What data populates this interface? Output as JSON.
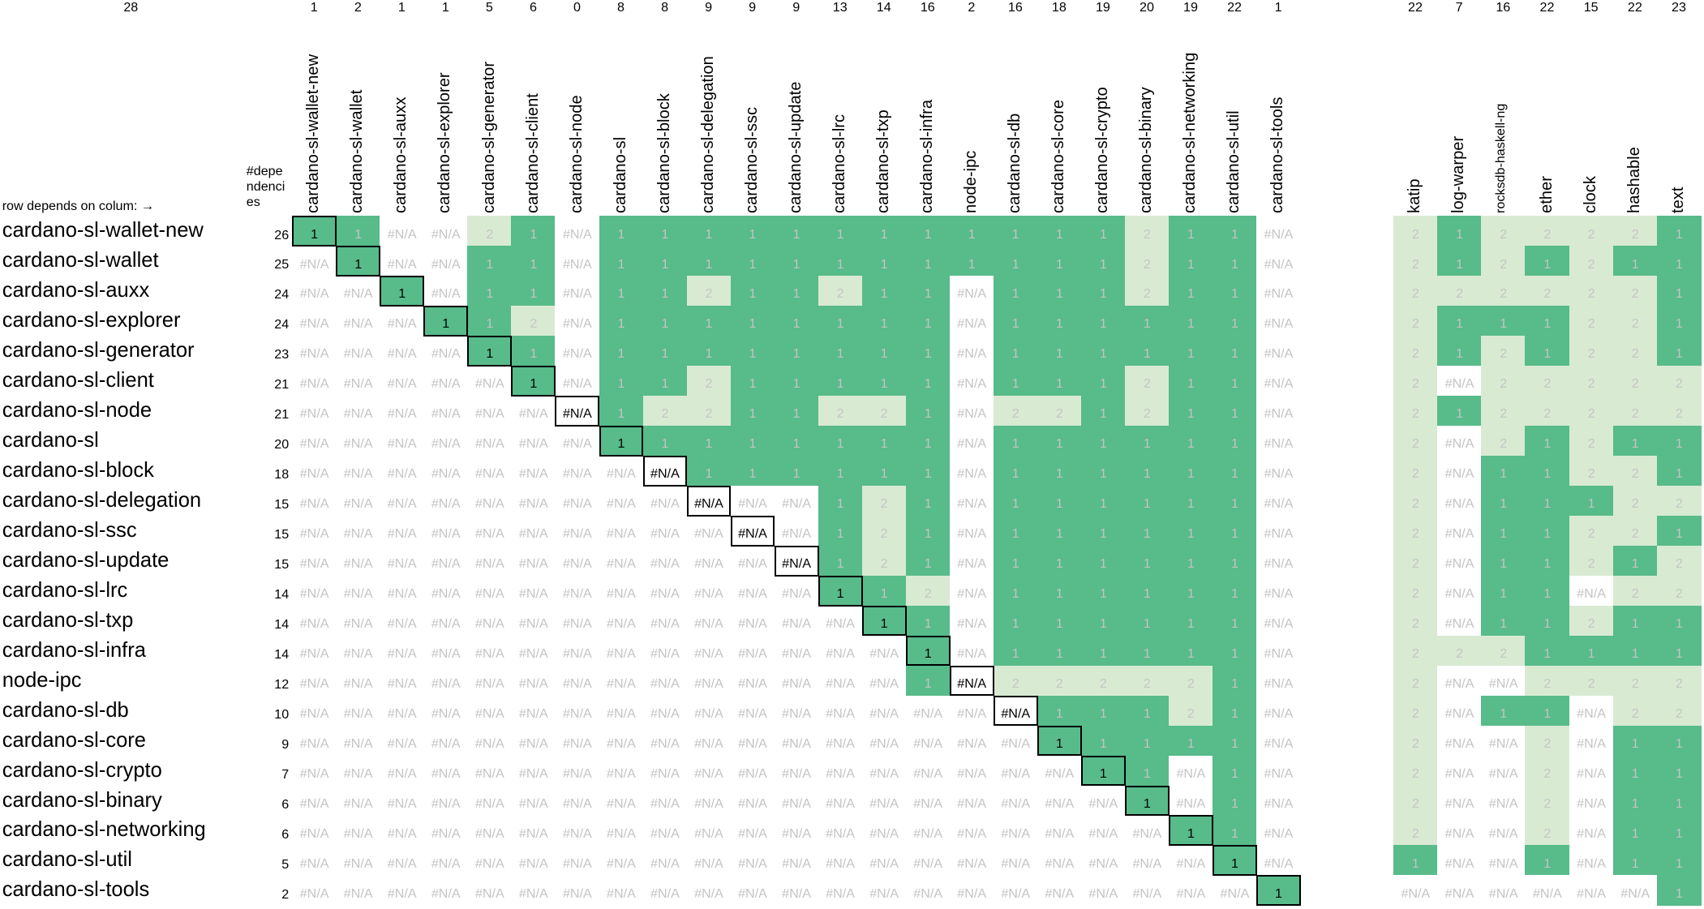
{
  "table": {
    "corner_count": 28,
    "corner_note": "row depends on colum: →",
    "deps_header": "#dependencies",
    "column_counts": [
      1,
      2,
      1,
      1,
      5,
      6,
      0,
      8,
      8,
      9,
      9,
      9,
      13,
      14,
      16,
      2,
      16,
      18,
      19,
      20,
      19,
      22,
      1
    ],
    "external_counts": [
      22,
      7,
      16,
      22,
      15,
      22,
      23
    ],
    "columns": [
      "cardano-sl-wallet-new",
      "cardano-sl-wallet",
      "cardano-sl-auxx",
      "cardano-sl-explorer",
      "cardano-sl-generator",
      "cardano-sl-client",
      "cardano-sl-node",
      "cardano-sl",
      "cardano-sl-block",
      "cardano-sl-delegation",
      "cardano-sl-ssc",
      "cardano-sl-update",
      "cardano-sl-lrc",
      "cardano-sl-txp",
      "cardano-sl-infra",
      "node-ipc",
      "cardano-sl-db",
      "cardano-sl-core",
      "cardano-sl-crypto",
      "cardano-sl-binary",
      "cardano-sl-networking",
      "cardano-sl-util",
      "cardano-sl-tools"
    ],
    "external_columns": [
      "katip",
      "log-warper",
      "rocksdb-haskell-ng",
      "ether",
      "clock",
      "hashable",
      "text"
    ],
    "rows": [
      {
        "label": "cardano-sl-wallet-new",
        "deps": 26,
        "cells": [
          1,
          1,
          "#N/A",
          "#N/A",
          2,
          1,
          "#N/A",
          1,
          1,
          1,
          1,
          1,
          1,
          1,
          1,
          1,
          1,
          1,
          1,
          2,
          1,
          1,
          "#N/A"
        ],
        "external": [
          2,
          1,
          2,
          2,
          2,
          2,
          1
        ]
      },
      {
        "label": "cardano-sl-wallet",
        "deps": 25,
        "cells": [
          "#N/A",
          1,
          "#N/A",
          "#N/A",
          1,
          1,
          "#N/A",
          1,
          1,
          1,
          1,
          1,
          1,
          1,
          1,
          1,
          1,
          1,
          1,
          2,
          1,
          1,
          "#N/A"
        ],
        "external": [
          2,
          1,
          2,
          1,
          2,
          1,
          1
        ]
      },
      {
        "label": "cardano-sl-auxx",
        "deps": 24,
        "cells": [
          "#N/A",
          "#N/A",
          1,
          "#N/A",
          1,
          1,
          "#N/A",
          1,
          1,
          2,
          1,
          1,
          2,
          1,
          1,
          "#N/A",
          1,
          1,
          1,
          2,
          1,
          1,
          "#N/A"
        ],
        "external": [
          2,
          2,
          2,
          2,
          2,
          2,
          1
        ]
      },
      {
        "label": "cardano-sl-explorer",
        "deps": 24,
        "cells": [
          "#N/A",
          "#N/A",
          "#N/A",
          1,
          1,
          2,
          "#N/A",
          1,
          1,
          1,
          1,
          1,
          1,
          1,
          1,
          "#N/A",
          1,
          1,
          1,
          1,
          1,
          1,
          "#N/A"
        ],
        "external": [
          2,
          1,
          1,
          1,
          2,
          2,
          1
        ]
      },
      {
        "label": "cardano-sl-generator",
        "deps": 23,
        "cells": [
          "#N/A",
          "#N/A",
          "#N/A",
          "#N/A",
          1,
          1,
          "#N/A",
          1,
          1,
          1,
          1,
          1,
          1,
          1,
          1,
          "#N/A",
          1,
          1,
          1,
          1,
          1,
          1,
          "#N/A"
        ],
        "external": [
          2,
          1,
          2,
          1,
          2,
          2,
          1
        ]
      },
      {
        "label": "cardano-sl-client",
        "deps": 21,
        "cells": [
          "#N/A",
          "#N/A",
          "#N/A",
          "#N/A",
          "#N/A",
          1,
          "#N/A",
          1,
          1,
          2,
          1,
          1,
          1,
          1,
          1,
          "#N/A",
          1,
          1,
          1,
          2,
          1,
          1,
          "#N/A"
        ],
        "external": [
          2,
          "#N/A",
          2,
          2,
          2,
          2,
          2
        ]
      },
      {
        "label": "cardano-sl-node",
        "deps": 21,
        "cells": [
          "#N/A",
          "#N/A",
          "#N/A",
          "#N/A",
          "#N/A",
          "#N/A",
          "#N/A",
          1,
          2,
          2,
          1,
          1,
          2,
          2,
          1,
          "#N/A",
          2,
          2,
          1,
          2,
          1,
          1,
          "#N/A"
        ],
        "external": [
          2,
          1,
          2,
          2,
          2,
          2,
          2
        ]
      },
      {
        "label": "cardano-sl",
        "deps": 20,
        "cells": [
          "#N/A",
          "#N/A",
          "#N/A",
          "#N/A",
          "#N/A",
          "#N/A",
          "#N/A",
          1,
          1,
          1,
          1,
          1,
          1,
          1,
          1,
          "#N/A",
          1,
          1,
          1,
          1,
          1,
          1,
          "#N/A"
        ],
        "external": [
          2,
          "#N/A",
          2,
          1,
          2,
          1,
          1
        ]
      },
      {
        "label": "cardano-sl-block",
        "deps": 18,
        "cells": [
          "#N/A",
          "#N/A",
          "#N/A",
          "#N/A",
          "#N/A",
          "#N/A",
          "#N/A",
          "#N/A",
          "#N/A",
          1,
          1,
          1,
          1,
          1,
          1,
          "#N/A",
          1,
          1,
          1,
          1,
          1,
          1,
          "#N/A"
        ],
        "external": [
          2,
          "#N/A",
          1,
          1,
          2,
          2,
          1
        ]
      },
      {
        "label": "cardano-sl-delegation",
        "deps": 15,
        "cells": [
          "#N/A",
          "#N/A",
          "#N/A",
          "#N/A",
          "#N/A",
          "#N/A",
          "#N/A",
          "#N/A",
          "#N/A",
          "#N/A",
          "#N/A",
          "#N/A",
          1,
          2,
          1,
          "#N/A",
          1,
          1,
          1,
          1,
          1,
          1,
          "#N/A"
        ],
        "external": [
          2,
          "#N/A",
          1,
          1,
          1,
          2,
          2
        ]
      },
      {
        "label": "cardano-sl-ssc",
        "deps": 15,
        "cells": [
          "#N/A",
          "#N/A",
          "#N/A",
          "#N/A",
          "#N/A",
          "#N/A",
          "#N/A",
          "#N/A",
          "#N/A",
          "#N/A",
          "#N/A",
          "#N/A",
          1,
          2,
          1,
          "#N/A",
          1,
          1,
          1,
          1,
          1,
          1,
          "#N/A"
        ],
        "external": [
          2,
          "#N/A",
          1,
          1,
          2,
          2,
          1
        ]
      },
      {
        "label": "cardano-sl-update",
        "deps": 15,
        "cells": [
          "#N/A",
          "#N/A",
          "#N/A",
          "#N/A",
          "#N/A",
          "#N/A",
          "#N/A",
          "#N/A",
          "#N/A",
          "#N/A",
          "#N/A",
          "#N/A",
          1,
          2,
          1,
          "#N/A",
          1,
          1,
          1,
          1,
          1,
          1,
          "#N/A"
        ],
        "external": [
          2,
          "#N/A",
          1,
          1,
          2,
          1,
          2
        ]
      },
      {
        "label": "cardano-sl-lrc",
        "deps": 14,
        "cells": [
          "#N/A",
          "#N/A",
          "#N/A",
          "#N/A",
          "#N/A",
          "#N/A",
          "#N/A",
          "#N/A",
          "#N/A",
          "#N/A",
          "#N/A",
          "#N/A",
          1,
          1,
          2,
          "#N/A",
          1,
          1,
          1,
          1,
          1,
          1,
          "#N/A"
        ],
        "external": [
          2,
          "#N/A",
          1,
          1,
          "#N/A",
          2,
          2
        ]
      },
      {
        "label": "cardano-sl-txp",
        "deps": 14,
        "cells": [
          "#N/A",
          "#N/A",
          "#N/A",
          "#N/A",
          "#N/A",
          "#N/A",
          "#N/A",
          "#N/A",
          "#N/A",
          "#N/A",
          "#N/A",
          "#N/A",
          "#N/A",
          1,
          1,
          "#N/A",
          1,
          1,
          1,
          1,
          1,
          1,
          "#N/A"
        ],
        "external": [
          2,
          "#N/A",
          1,
          1,
          2,
          1,
          1
        ]
      },
      {
        "label": "cardano-sl-infra",
        "deps": 14,
        "cells": [
          "#N/A",
          "#N/A",
          "#N/A",
          "#N/A",
          "#N/A",
          "#N/A",
          "#N/A",
          "#N/A",
          "#N/A",
          "#N/A",
          "#N/A",
          "#N/A",
          "#N/A",
          "#N/A",
          1,
          "#N/A",
          1,
          1,
          1,
          1,
          1,
          1,
          "#N/A"
        ],
        "external": [
          2,
          2,
          2,
          1,
          1,
          1,
          1
        ]
      },
      {
        "label": "node-ipc",
        "deps": 12,
        "cells": [
          "#N/A",
          "#N/A",
          "#N/A",
          "#N/A",
          "#N/A",
          "#N/A",
          "#N/A",
          "#N/A",
          "#N/A",
          "#N/A",
          "#N/A",
          "#N/A",
          "#N/A",
          "#N/A",
          1,
          "#N/A",
          2,
          2,
          2,
          2,
          2,
          1,
          "#N/A"
        ],
        "external": [
          2,
          "#N/A",
          "#N/A",
          2,
          2,
          2,
          2
        ]
      },
      {
        "label": "cardano-sl-db",
        "deps": 10,
        "cells": [
          "#N/A",
          "#N/A",
          "#N/A",
          "#N/A",
          "#N/A",
          "#N/A",
          "#N/A",
          "#N/A",
          "#N/A",
          "#N/A",
          "#N/A",
          "#N/A",
          "#N/A",
          "#N/A",
          "#N/A",
          "#N/A",
          "#N/A",
          1,
          1,
          1,
          2,
          1,
          "#N/A"
        ],
        "external": [
          2,
          "#N/A",
          1,
          1,
          "#N/A",
          2,
          2
        ]
      },
      {
        "label": "cardano-sl-core",
        "deps": 9,
        "cells": [
          "#N/A",
          "#N/A",
          "#N/A",
          "#N/A",
          "#N/A",
          "#N/A",
          "#N/A",
          "#N/A",
          "#N/A",
          "#N/A",
          "#N/A",
          "#N/A",
          "#N/A",
          "#N/A",
          "#N/A",
          "#N/A",
          "#N/A",
          1,
          1,
          1,
          1,
          1,
          "#N/A"
        ],
        "external": [
          2,
          "#N/A",
          "#N/A",
          2,
          "#N/A",
          1,
          1
        ]
      },
      {
        "label": "cardano-sl-crypto",
        "deps": 7,
        "cells": [
          "#N/A",
          "#N/A",
          "#N/A",
          "#N/A",
          "#N/A",
          "#N/A",
          "#N/A",
          "#N/A",
          "#N/A",
          "#N/A",
          "#N/A",
          "#N/A",
          "#N/A",
          "#N/A",
          "#N/A",
          "#N/A",
          "#N/A",
          "#N/A",
          1,
          1,
          "#N/A",
          1,
          "#N/A"
        ],
        "external": [
          2,
          "#N/A",
          "#N/A",
          2,
          "#N/A",
          1,
          1
        ]
      },
      {
        "label": "cardano-sl-binary",
        "deps": 6,
        "cells": [
          "#N/A",
          "#N/A",
          "#N/A",
          "#N/A",
          "#N/A",
          "#N/A",
          "#N/A",
          "#N/A",
          "#N/A",
          "#N/A",
          "#N/A",
          "#N/A",
          "#N/A",
          "#N/A",
          "#N/A",
          "#N/A",
          "#N/A",
          "#N/A",
          "#N/A",
          1,
          "#N/A",
          1,
          "#N/A"
        ],
        "external": [
          2,
          "#N/A",
          "#N/A",
          2,
          "#N/A",
          1,
          1
        ]
      },
      {
        "label": "cardano-sl-networking",
        "deps": 6,
        "cells": [
          "#N/A",
          "#N/A",
          "#N/A",
          "#N/A",
          "#N/A",
          "#N/A",
          "#N/A",
          "#N/A",
          "#N/A",
          "#N/A",
          "#N/A",
          "#N/A",
          "#N/A",
          "#N/A",
          "#N/A",
          "#N/A",
          "#N/A",
          "#N/A",
          "#N/A",
          "#N/A",
          1,
          1,
          "#N/A"
        ],
        "external": [
          2,
          "#N/A",
          "#N/A",
          2,
          "#N/A",
          1,
          1
        ]
      },
      {
        "label": "cardano-sl-util",
        "deps": 5,
        "cells": [
          "#N/A",
          "#N/A",
          "#N/A",
          "#N/A",
          "#N/A",
          "#N/A",
          "#N/A",
          "#N/A",
          "#N/A",
          "#N/A",
          "#N/A",
          "#N/A",
          "#N/A",
          "#N/A",
          "#N/A",
          "#N/A",
          "#N/A",
          "#N/A",
          "#N/A",
          "#N/A",
          "#N/A",
          1,
          "#N/A"
        ],
        "external": [
          1,
          "#N/A",
          "#N/A",
          1,
          "#N/A",
          1,
          1
        ]
      },
      {
        "label": "cardano-sl-tools",
        "deps": 2,
        "cells": [
          "#N/A",
          "#N/A",
          "#N/A",
          "#N/A",
          "#N/A",
          "#N/A",
          "#N/A",
          "#N/A",
          "#N/A",
          "#N/A",
          "#N/A",
          "#N/A",
          "#N/A",
          "#N/A",
          "#N/A",
          "#N/A",
          "#N/A",
          "#N/A",
          "#N/A",
          "#N/A",
          "#N/A",
          "#N/A",
          1
        ],
        "external": [
          "#N/A",
          "#N/A",
          "#N/A",
          "#N/A",
          "#N/A",
          "#N/A",
          1
        ]
      }
    ]
  }
}
